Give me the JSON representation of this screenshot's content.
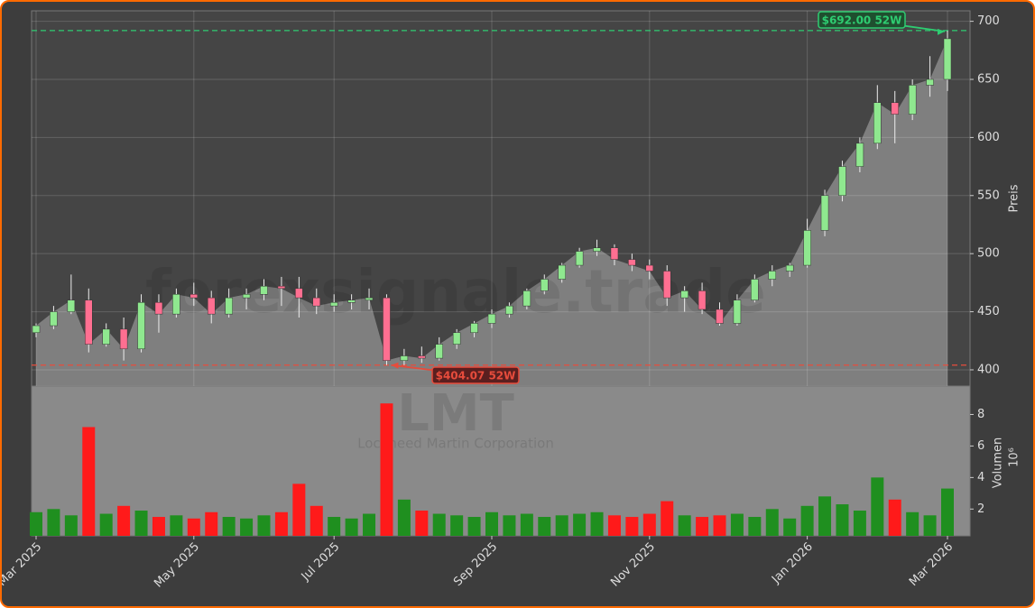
{
  "chart_data": {
    "type": "candlestick",
    "watermark": "forexsignale.trade",
    "symbol": "LMT",
    "company": "Lockheed Martin Corporation",
    "categories": [
      "Mar 2025",
      null,
      null,
      null,
      null,
      null,
      null,
      null,
      null,
      "May 2025",
      null,
      null,
      null,
      null,
      null,
      null,
      null,
      "Jul 2025",
      null,
      null,
      null,
      null,
      null,
      null,
      null,
      null,
      "Sep 2025",
      null,
      null,
      null,
      null,
      null,
      null,
      null,
      null,
      "Nov 2025",
      null,
      null,
      null,
      null,
      null,
      null,
      null,
      null,
      "Jan 2026",
      null,
      null,
      null,
      null,
      null,
      null,
      null,
      "Mar 2026"
    ],
    "open": [
      432,
      438,
      450,
      460,
      422,
      435,
      418,
      458,
      448,
      465,
      462,
      448,
      462,
      465,
      472,
      470,
      462,
      455,
      458,
      460,
      462,
      408,
      412,
      410,
      422,
      432,
      440,
      448,
      455,
      468,
      478,
      490,
      502,
      505,
      495,
      490,
      485,
      462,
      468,
      452,
      440,
      460,
      478,
      485,
      490,
      520,
      550,
      575,
      595,
      630,
      620,
      645,
      650
    ],
    "high": [
      440,
      455,
      482,
      470,
      440,
      445,
      465,
      465,
      470,
      475,
      468,
      470,
      470,
      478,
      480,
      480,
      470,
      465,
      465,
      470,
      465,
      418,
      420,
      428,
      435,
      442,
      452,
      458,
      470,
      482,
      492,
      505,
      512,
      508,
      500,
      495,
      490,
      472,
      475,
      458,
      465,
      482,
      490,
      492,
      530,
      555,
      580,
      600,
      645,
      640,
      650,
      670,
      692
    ],
    "low": [
      428,
      435,
      448,
      415,
      420,
      408,
      415,
      432,
      445,
      455,
      440,
      445,
      452,
      460,
      455,
      445,
      448,
      450,
      452,
      452,
      404.07,
      404,
      406,
      408,
      418,
      428,
      436,
      445,
      452,
      465,
      475,
      488,
      498,
      490,
      485,
      478,
      455,
      450,
      448,
      438,
      438,
      458,
      472,
      480,
      488,
      515,
      545,
      570,
      590,
      595,
      615,
      635,
      640
    ],
    "close": [
      438,
      450,
      460,
      422,
      435,
      418,
      458,
      448,
      465,
      462,
      448,
      462,
      465,
      472,
      470,
      462,
      455,
      458,
      460,
      462,
      408,
      412,
      410,
      422,
      432,
      440,
      448,
      455,
      468,
      478,
      490,
      502,
      505,
      495,
      490,
      485,
      462,
      468,
      452,
      440,
      460,
      478,
      485,
      490,
      520,
      550,
      575,
      595,
      630,
      620,
      645,
      650,
      685
    ],
    "volume": [
      1.8,
      2.0,
      1.6,
      7.2,
      1.7,
      2.2,
      1.9,
      1.5,
      1.6,
      1.4,
      1.8,
      1.5,
      1.4,
      1.6,
      1.8,
      3.6,
      2.2,
      1.5,
      1.4,
      1.7,
      8.7,
      2.6,
      1.9,
      1.7,
      1.6,
      1.5,
      1.8,
      1.6,
      1.7,
      1.5,
      1.6,
      1.7,
      1.8,
      1.6,
      1.5,
      1.7,
      2.5,
      1.6,
      1.5,
      1.6,
      1.7,
      1.5,
      2.0,
      1.4,
      2.2,
      2.8,
      2.3,
      1.9,
      4.0,
      2.6,
      1.8,
      1.6,
      3.3
    ],
    "up_color": "#8fe88f",
    "down_color": "#ff6f91",
    "volume_up_color": "#1f8f1f",
    "volume_down_color": "#ff1a1a",
    "area_color": "#8a8a8a",
    "ylim": [
      386,
      709
    ],
    "yticks": [
      400,
      450,
      500,
      550,
      600,
      650,
      700
    ],
    "y_label": "Preis",
    "volume_ylim": [
      0.3,
      9.8
    ],
    "volume_yticks": [
      2,
      4,
      6,
      8
    ],
    "volume_label": "Volumen",
    "volume_unit": "10⁶",
    "grid": true,
    "high_line": {
      "value": 692,
      "label": "$692.00 52W",
      "color": "#2ecc71"
    },
    "low_line": {
      "value": 404.07,
      "label": "$404.07 52W",
      "color": "#e74c3c"
    }
  }
}
